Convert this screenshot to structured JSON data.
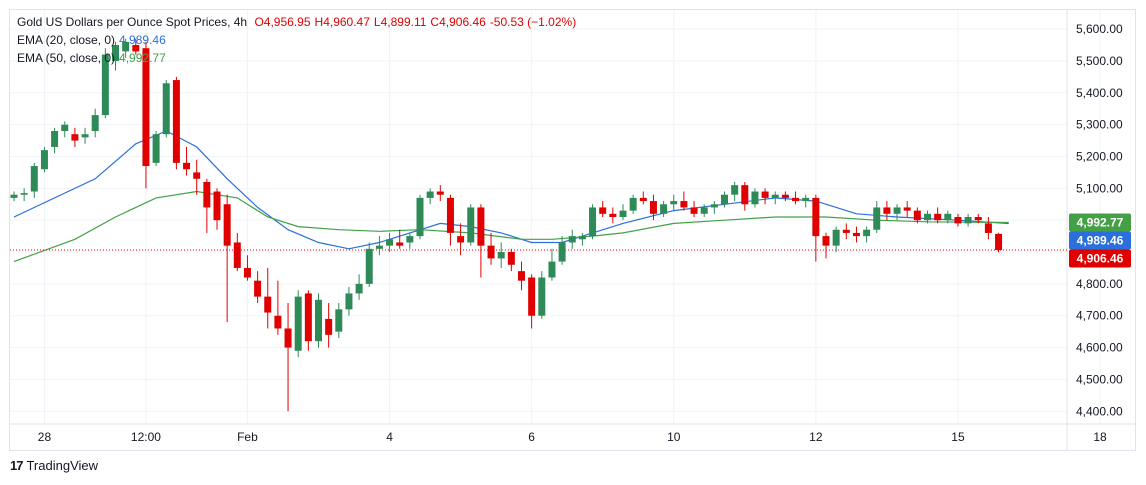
{
  "header": {
    "symbol": "Gold US Dollars per Ounce Spot Prices, 4h",
    "open_label": "O",
    "open": "4,956.95",
    "high_label": "H",
    "high": "4,960.47",
    "low_label": "L",
    "low": "4,899.11",
    "close_label": "C",
    "close": "4,906.46",
    "change": "-50.53 (−1.02%)"
  },
  "indicators": [
    {
      "name": "EMA (20, close, 0)",
      "value": "4,989.46",
      "color": "#2a6fdb"
    },
    {
      "name": "EMA (50, close, 0)",
      "value": "4,992.77",
      "color": "#43a047"
    }
  ],
  "footer": {
    "brand": "TradingView",
    "logo": "17"
  },
  "chart_data": {
    "type": "candlestick",
    "title": "Gold US Dollars per Ounce Spot Prices, 4h",
    "ylim": [
      4360,
      5660
    ],
    "yticks": [
      4400,
      4500,
      4600,
      4700,
      4800,
      4900,
      5000,
      5100,
      5200,
      5300,
      5400,
      5500,
      5600
    ],
    "ytick_labels": [
      "4,400.00",
      "4,500.00",
      "4,600.00",
      "4,700.00",
      "4,800.00",
      "4,900.00",
      "5,000.00",
      "5,100.00",
      "5,200.00",
      "5,300.00",
      "5,400.00",
      "5,500.00",
      "5,600.00"
    ],
    "xticks": [
      {
        "label": "28",
        "bar": 3
      },
      {
        "label": "12:00",
        "bar": 13
      },
      {
        "label": "Feb",
        "bar": 23
      },
      {
        "label": "4",
        "bar": 37
      },
      {
        "label": "6",
        "bar": 51
      },
      {
        "label": "10",
        "bar": 65
      },
      {
        "label": "12",
        "bar": 79
      },
      {
        "label": "15",
        "bar": 93
      },
      {
        "label": "18",
        "bar": 107
      }
    ],
    "candles": [
      [
        5070,
        5090,
        5060,
        5080
      ],
      [
        5080,
        5100,
        5060,
        5085
      ],
      [
        5090,
        5180,
        5070,
        5170
      ],
      [
        5160,
        5230,
        5150,
        5220
      ],
      [
        5230,
        5290,
        5210,
        5280
      ],
      [
        5280,
        5310,
        5260,
        5300
      ],
      [
        5270,
        5290,
        5230,
        5250
      ],
      [
        5260,
        5290,
        5240,
        5270
      ],
      [
        5280,
        5350,
        5260,
        5330
      ],
      [
        5330,
        5540,
        5320,
        5520
      ],
      [
        5500,
        5560,
        5470,
        5550
      ],
      [
        5530,
        5570,
        5510,
        5560
      ],
      [
        5550,
        5570,
        5520,
        5530
      ],
      [
        5540,
        5560,
        5100,
        5170
      ],
      [
        5180,
        5280,
        5170,
        5270
      ],
      [
        5270,
        5440,
        5260,
        5430
      ],
      [
        5440,
        5450,
        5160,
        5180
      ],
      [
        5180,
        5230,
        5140,
        5160
      ],
      [
        5150,
        5190,
        5080,
        5130
      ],
      [
        5120,
        5130,
        4960,
        5040
      ],
      [
        5090,
        5100,
        4970,
        5000
      ],
      [
        5050,
        5080,
        4680,
        4920
      ],
      [
        4930,
        4960,
        4840,
        4850
      ],
      [
        4850,
        4890,
        4810,
        4820
      ],
      [
        4810,
        4840,
        4740,
        4760
      ],
      [
        4760,
        4850,
        4660,
        4710
      ],
      [
        4700,
        4810,
        4640,
        4660
      ],
      [
        4660,
        4740,
        4400,
        4600
      ],
      [
        4590,
        4780,
        4570,
        4760
      ],
      [
        4770,
        4780,
        4590,
        4620
      ],
      [
        4620,
        4770,
        4600,
        4750
      ],
      [
        4690,
        4740,
        4600,
        4640
      ],
      [
        4650,
        4740,
        4630,
        4720
      ],
      [
        4720,
        4790,
        4700,
        4770
      ],
      [
        4770,
        4830,
        4750,
        4800
      ],
      [
        4800,
        4930,
        4790,
        4910
      ],
      [
        4910,
        4950,
        4890,
        4920
      ],
      [
        4920,
        4960,
        4900,
        4940
      ],
      [
        4930,
        4970,
        4910,
        4920
      ],
      [
        4930,
        4960,
        4910,
        4950
      ],
      [
        4950,
        5080,
        4940,
        5070
      ],
      [
        5070,
        5100,
        5050,
        5090
      ],
      [
        5090,
        5110,
        5060,
        5080
      ],
      [
        5070,
        5080,
        4920,
        4960
      ],
      [
        4950,
        4990,
        4890,
        4930
      ],
      [
        4930,
        5050,
        4920,
        5040
      ],
      [
        5040,
        5050,
        4820,
        4920
      ],
      [
        4920,
        4960,
        4860,
        4880
      ],
      [
        4880,
        4930,
        4850,
        4900
      ],
      [
        4900,
        4910,
        4840,
        4860
      ],
      [
        4840,
        4870,
        4780,
        4810
      ],
      [
        4820,
        4830,
        4660,
        4700
      ],
      [
        4700,
        4840,
        4690,
        4820
      ],
      [
        4820,
        4910,
        4810,
        4870
      ],
      [
        4870,
        4950,
        4860,
        4930
      ],
      [
        4930,
        4970,
        4910,
        4950
      ],
      [
        4940,
        4960,
        4920,
        4950
      ],
      [
        4950,
        5050,
        4940,
        5040
      ],
      [
        5040,
        5060,
        5010,
        5020
      ],
      [
        5020,
        5040,
        4990,
        5010
      ],
      [
        5010,
        5050,
        5000,
        5030
      ],
      [
        5030,
        5080,
        5020,
        5070
      ],
      [
        5070,
        5090,
        5050,
        5060
      ],
      [
        5060,
        5080,
        5000,
        5020
      ],
      [
        5020,
        5060,
        5010,
        5050
      ],
      [
        5050,
        5080,
        5030,
        5060
      ],
      [
        5060,
        5090,
        5030,
        5040
      ],
      [
        5040,
        5060,
        5010,
        5020
      ],
      [
        5020,
        5050,
        5010,
        5040
      ],
      [
        5040,
        5060,
        5020,
        5050
      ],
      [
        5050,
        5090,
        5040,
        5080
      ],
      [
        5080,
        5120,
        5060,
        5110
      ],
      [
        5110,
        5120,
        5030,
        5050
      ],
      [
        5050,
        5100,
        5040,
        5090
      ],
      [
        5090,
        5100,
        5050,
        5070
      ],
      [
        5070,
        5090,
        5050,
        5080
      ],
      [
        5080,
        5090,
        5060,
        5070
      ],
      [
        5070,
        5090,
        5050,
        5060
      ],
      [
        5060,
        5080,
        5040,
        5070
      ],
      [
        5070,
        5080,
        4870,
        4950
      ],
      [
        4950,
        4960,
        4880,
        4920
      ],
      [
        4920,
        4980,
        4900,
        4970
      ],
      [
        4970,
        4990,
        4940,
        4960
      ],
      [
        4960,
        4980,
        4930,
        4950
      ],
      [
        4950,
        4980,
        4930,
        4970
      ],
      [
        4970,
        5060,
        4960,
        5040
      ],
      [
        5040,
        5060,
        5000,
        5020
      ],
      [
        5020,
        5050,
        5000,
        5040
      ],
      [
        5040,
        5060,
        5010,
        5030
      ],
      [
        5030,
        5040,
        4990,
        5000
      ],
      [
        5000,
        5030,
        4990,
        5020
      ],
      [
        5020,
        5040,
        4990,
        5000
      ],
      [
        5000,
        5030,
        4990,
        5020
      ],
      [
        5010,
        5020,
        4980,
        4990
      ],
      [
        4990,
        5020,
        4980,
        5010
      ],
      [
        5010,
        5020,
        4990,
        5000
      ],
      [
        4990,
        5010,
        4940,
        4960
      ],
      [
        4956.95,
        4960.47,
        4899.11,
        4906.46
      ]
    ],
    "series": [
      {
        "name": "EMA (20, close, 0)",
        "color": "#2a6fdb",
        "points": [
          [
            0,
            5010
          ],
          [
            8,
            5130
          ],
          [
            12,
            5240
          ],
          [
            15,
            5280
          ],
          [
            18,
            5230
          ],
          [
            21,
            5130
          ],
          [
            24,
            5040
          ],
          [
            27,
            4970
          ],
          [
            30,
            4930
          ],
          [
            33,
            4910
          ],
          [
            36,
            4930
          ],
          [
            39,
            4960
          ],
          [
            42,
            4990
          ],
          [
            45,
            4980
          ],
          [
            48,
            4960
          ],
          [
            51,
            4930
          ],
          [
            54,
            4930
          ],
          [
            57,
            4960
          ],
          [
            60,
            4990
          ],
          [
            65,
            5030
          ],
          [
            70,
            5050
          ],
          [
            75,
            5070
          ],
          [
            79,
            5060
          ],
          [
            83,
            5020
          ],
          [
            87,
            5010
          ],
          [
            93,
            5000
          ],
          [
            98,
            4989.46
          ]
        ]
      },
      {
        "name": "EMA (50, close, 0)",
        "color": "#43a047",
        "points": [
          [
            0,
            4870
          ],
          [
            6,
            4940
          ],
          [
            10,
            5010
          ],
          [
            14,
            5070
          ],
          [
            18,
            5090
          ],
          [
            22,
            5070
          ],
          [
            25,
            5010
          ],
          [
            28,
            4980
          ],
          [
            32,
            4970
          ],
          [
            36,
            4965
          ],
          [
            40,
            4970
          ],
          [
            45,
            4960
          ],
          [
            50,
            4940
          ],
          [
            53,
            4940
          ],
          [
            57,
            4950
          ],
          [
            60,
            4960
          ],
          [
            65,
            4990
          ],
          [
            70,
            5000
          ],
          [
            75,
            5010
          ],
          [
            80,
            5010
          ],
          [
            85,
            5000
          ],
          [
            90,
            4995
          ],
          [
            98,
            4992.77
          ]
        ]
      }
    ],
    "last_price": "4,906.46",
    "last_price_value": 4906.46,
    "price_tags": [
      {
        "label": "4,992.77",
        "value": 4992.77,
        "color": "#43a047"
      },
      {
        "label": "4,989.46",
        "value": 4989.46,
        "color": "#2a6fdb"
      },
      {
        "label": "4,906.46",
        "value": 4906.46,
        "color": "#e00000"
      }
    ],
    "up_color": "#2e8b57",
    "down_color": "#e00000"
  }
}
